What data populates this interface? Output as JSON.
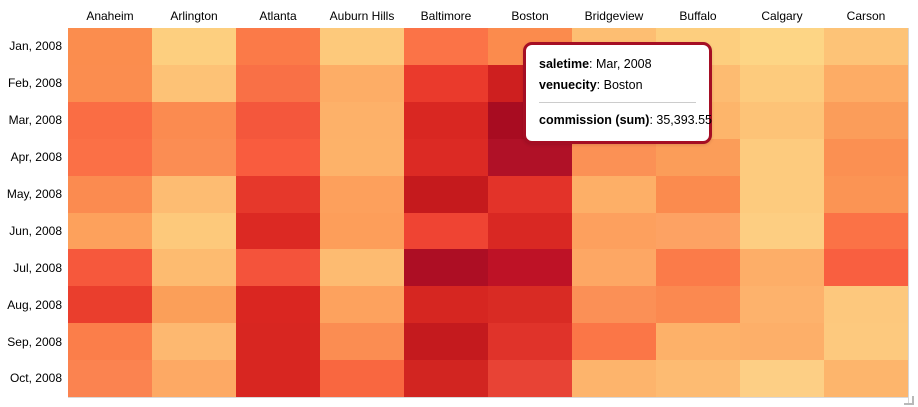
{
  "tooltip": {
    "separator": ": ",
    "rows": [
      {
        "label": "saletime",
        "value": "Mar, 2008"
      },
      {
        "label": "venuecity",
        "value": "Boston"
      }
    ],
    "measure": {
      "label": "commission (sum)",
      "value": "35,393.55"
    },
    "border_color": "#A50E24"
  },
  "chart_data": {
    "type": "heatmap",
    "x_field": "venuecity",
    "y_field": "saletime",
    "measure_field": "commission (sum)",
    "x_categories": [
      "Anaheim",
      "Arlington",
      "Atlanta",
      "Auburn Hills",
      "Baltimore",
      "Boston",
      "Bridgeview",
      "Buffalo",
      "Calgary",
      "Carson"
    ],
    "y_categories": [
      "Jan, 2008",
      "Feb, 2008",
      "Mar, 2008",
      "Apr, 2008",
      "May, 2008",
      "Jun, 2008",
      "Jul, 2008",
      "Aug, 2008",
      "Sep, 2008",
      "Oct, 2008"
    ],
    "color_scale": {
      "name": "YlOrRd",
      "low_color": "#FDD585",
      "high_color": "#A80C21",
      "legend_visible": false
    },
    "cell_colors": [
      [
        "#FB8D4E",
        "#FDCF7F",
        "#FB7A48",
        "#FDC97B",
        "#FB7347",
        "#FB8B4D",
        "#FDBE72",
        "#FDCE7E",
        "#FDD585",
        "#FDC377"
      ],
      [
        "#FB8D4F",
        "#FDC276",
        "#F97046",
        "#FDAD66",
        "#EA3A2C",
        "#CE1F1F",
        "#FDA966",
        "#FDBB71",
        "#FDCB7D",
        "#FDAC65"
      ],
      [
        "#FA6D44",
        "#FB8B50",
        "#F4573C",
        "#FDB169",
        "#D92722",
        "#A80C21",
        "#FB9355",
        "#FDB56B",
        "#FDC377",
        "#FB9D5A"
      ],
      [
        "#FB7046",
        "#FB8D53",
        "#F95C3E",
        "#FDB269",
        "#DC2A24",
        "#B01127",
        "#FB9155",
        "#FB9D59",
        "#FDCB7E",
        "#FB9052"
      ],
      [
        "#FB8B50",
        "#FDBC72",
        "#E6382B",
        "#FDA05C",
        "#C51A1D",
        "#E33329",
        "#FDAF67",
        "#FB8B4E",
        "#FDCB7E",
        "#FB9454"
      ],
      [
        "#FDA15C",
        "#FDC97B",
        "#DC2923",
        "#FD9E5A",
        "#EF4433",
        "#D92823",
        "#FDA05E",
        "#FDA263",
        "#FDCE82",
        "#FB7246"
      ],
      [
        "#F6583C",
        "#FDBB70",
        "#F4533B",
        "#FDBB71",
        "#AD0E24",
        "#BE1226",
        "#FDA764",
        "#FB7B49",
        "#FDAE68",
        "#F95F40"
      ],
      [
        "#EA3E2D",
        "#FB9F59",
        "#DA2621",
        "#FDA25E",
        "#D62621",
        "#D92B24",
        "#FB9056",
        "#FB8950",
        "#FDB26C",
        "#FDC87D"
      ],
      [
        "#FB7E4A",
        "#FDB870",
        "#D82621",
        "#FB8D52",
        "#C41A1E",
        "#E0332A",
        "#FB7647",
        "#FDB169",
        "#FDAF69",
        "#FDC97E"
      ],
      [
        "#FB8350",
        "#FDA964",
        "#D82621",
        "#F96740",
        "#D22521",
        "#E84335",
        "#FDB46C",
        "#FDBB72",
        "#FDCF85",
        "#FDB56C"
      ]
    ],
    "selected_cell": {
      "row_index": 2,
      "col_index": 5,
      "saletime": "Mar, 2008",
      "venuecity": "Boston",
      "commission_sum": "35,393.55"
    }
  }
}
